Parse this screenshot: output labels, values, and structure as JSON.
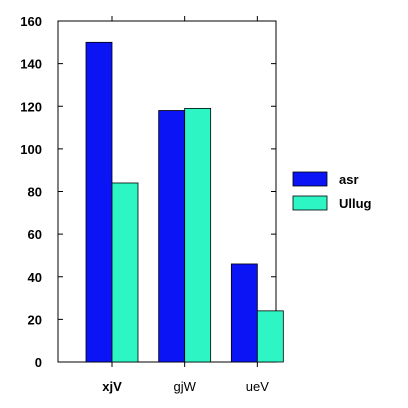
{
  "chart_data": {
    "type": "bar",
    "title": "",
    "xlabel": "",
    "ylabel": "",
    "categories": [
      "xjV",
      "gjW",
      "ueV"
    ],
    "bold_categories": [
      "xjV"
    ],
    "series": [
      {
        "name": "asr",
        "color": "#0a14f5",
        "values": [
          150,
          118,
          46
        ]
      },
      {
        "name": "Ullug",
        "color": "#2ef5c4",
        "values": [
          84,
          119,
          24
        ]
      }
    ],
    "ylim": [
      0,
      160
    ],
    "yticks": [
      0,
      20,
      40,
      60,
      80,
      100,
      120,
      140,
      160
    ],
    "grid": false,
    "legend_position": "right"
  }
}
